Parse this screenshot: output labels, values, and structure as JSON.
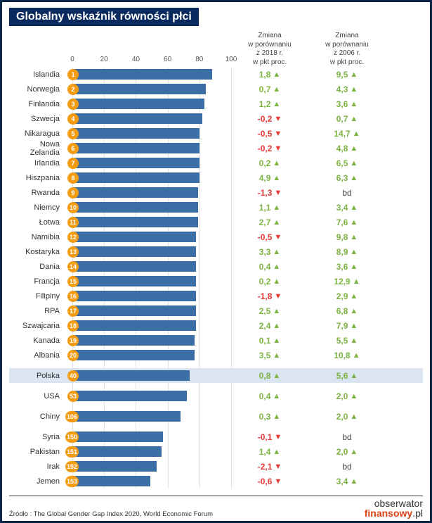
{
  "title": "Globalny wskaźnik równości płci",
  "axis": {
    "min": 0,
    "max": 100,
    "ticks": [
      0,
      20,
      40,
      60,
      80,
      100
    ]
  },
  "columns": {
    "change2018": "Zmiana\nw porównaniu\nz 2018 r.\nw pkt proc.",
    "change2006": "Zmiana\nw porównaniu\nz 2006 r.\nw pkt proc."
  },
  "colors": {
    "title_bg": "#0a2a5e",
    "title_text": "#ffffff",
    "bar": "#3a6ea5",
    "badge": "#f39c12",
    "positive": "#7cb342",
    "negative": "#e53935",
    "grid": "#e3e3e3",
    "highlight_bg": "#dbe5f1",
    "border": "#0a2647"
  },
  "rows": [
    {
      "country": "Islandia",
      "rank": 1,
      "value": 88,
      "c2018": "1,8",
      "d2018": "up",
      "c2006": "9,5",
      "d2006": "up"
    },
    {
      "country": "Norwegia",
      "rank": 2,
      "value": 84,
      "c2018": "0,7",
      "d2018": "up",
      "c2006": "4,3",
      "d2006": "up"
    },
    {
      "country": "Finlandia",
      "rank": 3,
      "value": 83,
      "c2018": "1,2",
      "d2018": "up",
      "c2006": "3,6",
      "d2006": "up"
    },
    {
      "country": "Szwecja",
      "rank": 4,
      "value": 82,
      "c2018": "-0,2",
      "d2018": "down",
      "c2006": "0,7",
      "d2006": "up"
    },
    {
      "country": "Nikaragua",
      "rank": 5,
      "value": 80,
      "c2018": "-0,5",
      "d2018": "down",
      "c2006": "14,7",
      "d2006": "up"
    },
    {
      "country": "Nowa Zelandia",
      "rank": 6,
      "value": 80,
      "c2018": "-0,2",
      "d2018": "down",
      "c2006": "4,8",
      "d2006": "up"
    },
    {
      "country": "Irlandia",
      "rank": 7,
      "value": 80,
      "c2018": "0,2",
      "d2018": "up",
      "c2006": "6,5",
      "d2006": "up"
    },
    {
      "country": "Hiszpania",
      "rank": 8,
      "value": 80,
      "c2018": "4,9",
      "d2018": "up",
      "c2006": "6,3",
      "d2006": "up"
    },
    {
      "country": "Rwanda",
      "rank": 9,
      "value": 79,
      "c2018": "-1,3",
      "d2018": "down",
      "c2006": "bd",
      "d2006": "bd"
    },
    {
      "country": "Niemcy",
      "rank": 10,
      "value": 79,
      "c2018": "1,1",
      "d2018": "up",
      "c2006": "3,4",
      "d2006": "up"
    },
    {
      "country": "Łotwa",
      "rank": 11,
      "value": 79,
      "c2018": "2,7",
      "d2018": "up",
      "c2006": "7,6",
      "d2006": "up"
    },
    {
      "country": "Namibia",
      "rank": 12,
      "value": 78,
      "c2018": "-0,5",
      "d2018": "down",
      "c2006": "9,8",
      "d2006": "up"
    },
    {
      "country": "Kostaryka",
      "rank": 13,
      "value": 78,
      "c2018": "3,3",
      "d2018": "up",
      "c2006": "8,9",
      "d2006": "up"
    },
    {
      "country": "Dania",
      "rank": 14,
      "value": 78,
      "c2018": "0,4",
      "d2018": "up",
      "c2006": "3,6",
      "d2006": "up"
    },
    {
      "country": "Francja",
      "rank": 15,
      "value": 78,
      "c2018": "0,2",
      "d2018": "up",
      "c2006": "12,9",
      "d2006": "up"
    },
    {
      "country": "Filipiny",
      "rank": 16,
      "value": 78,
      "c2018": "-1,8",
      "d2018": "down",
      "c2006": "2,9",
      "d2006": "up"
    },
    {
      "country": "RPA",
      "rank": 17,
      "value": 78,
      "c2018": "2,5",
      "d2018": "up",
      "c2006": "6,8",
      "d2006": "up"
    },
    {
      "country": "Szwajcaria",
      "rank": 18,
      "value": 78,
      "c2018": "2,4",
      "d2018": "up",
      "c2006": "7,9",
      "d2006": "up"
    },
    {
      "country": "Kanada",
      "rank": 19,
      "value": 77,
      "c2018": "0,1",
      "d2018": "up",
      "c2006": "5,5",
      "d2006": "up"
    },
    {
      "country": "Albania",
      "rank": 20,
      "value": 77,
      "c2018": "3,5",
      "d2018": "up",
      "c2006": "10,8",
      "d2006": "up"
    },
    {
      "country": "Polska",
      "rank": 40,
      "value": 74,
      "c2018": "0,8",
      "d2018": "up",
      "c2006": "5,6",
      "d2006": "up",
      "highlight": true,
      "spaced": true
    },
    {
      "country": "USA",
      "rank": 53,
      "value": 72,
      "c2018": "0,4",
      "d2018": "up",
      "c2006": "2,0",
      "d2006": "up",
      "spaced": true
    },
    {
      "country": "Chiny",
      "rank": 106,
      "value": 68,
      "c2018": "0,3",
      "d2018": "up",
      "c2006": "2,0",
      "d2006": "up",
      "spaced": true
    },
    {
      "country": "Syria",
      "rank": 150,
      "value": 57,
      "c2018": "-0,1",
      "d2018": "down",
      "c2006": "bd",
      "d2006": "bd",
      "spaced": true
    },
    {
      "country": "Pakistan",
      "rank": 151,
      "value": 56,
      "c2018": "1,4",
      "d2018": "up",
      "c2006": "2,0",
      "d2006": "up"
    },
    {
      "country": "Irak",
      "rank": 152,
      "value": 53,
      "c2018": "-2,1",
      "d2018": "down",
      "c2006": "bd",
      "d2006": "bd"
    },
    {
      "country": "Jemen",
      "rank": 153,
      "value": 49,
      "c2018": "-0,6",
      "d2018": "down",
      "c2006": "3,4",
      "d2006": "up"
    }
  ],
  "source": "Źródło : The Global Gender Gap Index 2020, World Economic Forum",
  "logo": {
    "line1": "obserwator",
    "line2a": "finansowy",
    "line2b": ".pl"
  }
}
